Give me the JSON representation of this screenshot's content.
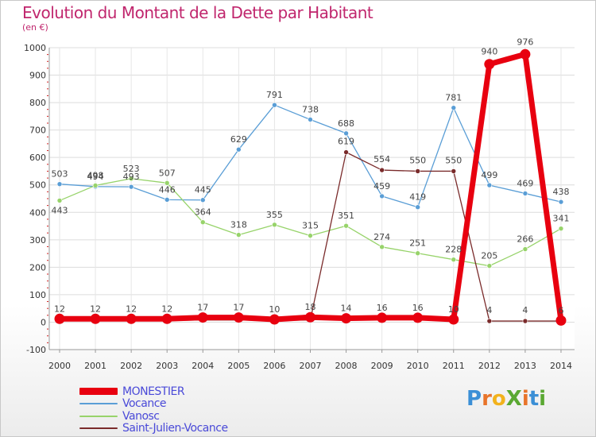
{
  "title": "Evolution du Montant de la Dette par Habitant",
  "unit_label": "(en €)",
  "logo": {
    "text": "ProXiti",
    "letters": [
      {
        "char": "P",
        "color": "#3b8fd6"
      },
      {
        "char": "r",
        "color": "#e8742a"
      },
      {
        "char": "o",
        "color": "#f2b21c"
      },
      {
        "char": "X",
        "color": "#5aa832"
      },
      {
        "char": "i",
        "color": "#e8742a"
      },
      {
        "char": "t",
        "color": "#3b8fd6"
      },
      {
        "char": "i",
        "color": "#5aa832"
      }
    ]
  },
  "chart_data": {
    "type": "line",
    "title": "Evolution du Montant de la Dette par Habitant",
    "ylabel": "(en €)",
    "xlabel": "",
    "ylim": [
      -100,
      1000
    ],
    "yticks": [
      -100,
      0,
      100,
      200,
      300,
      400,
      500,
      600,
      700,
      800,
      900,
      1000
    ],
    "grid": true,
    "legend_position": "bottom-left",
    "x": [
      "2000",
      "2001",
      "2002",
      "2003",
      "2004",
      "2005",
      "2006",
      "2007",
      "2008",
      "2009",
      "2010",
      "2011",
      "2012",
      "2013",
      "2014"
    ],
    "series": [
      {
        "name": "Vocance",
        "color": "#5a9ed6",
        "values": [
          503,
          494,
          493,
          446,
          445,
          629,
          791,
          738,
          688,
          459,
          419,
          781,
          499,
          469,
          438
        ]
      },
      {
        "name": "Vanosc",
        "color": "#97d36a",
        "values": [
          443,
          498,
          523,
          507,
          364,
          318,
          355,
          315,
          351,
          274,
          251,
          228,
          205,
          266,
          341
        ]
      },
      {
        "name": "Saint-Julien-Vocance",
        "color": "#7a2b2b",
        "values": [
          6,
          6,
          6,
          6,
          8,
          8,
          6,
          8,
          619,
          554,
          550,
          550,
          4,
          4,
          4
        ]
      },
      {
        "name": "MONESTIER",
        "color": "#e8000f",
        "values": [
          12,
          12,
          12,
          12,
          17,
          17,
          10,
          18,
          14,
          16,
          16,
          10,
          940,
          976,
          6
        ]
      }
    ],
    "data_labels": {
      "Vocance": [
        "503",
        "494",
        "493",
        "446",
        "445",
        "629",
        "791",
        "738",
        "688",
        "459",
        "419",
        "781",
        "499",
        "469",
        "438"
      ],
      "Vanosc": [
        "443",
        "498",
        "523",
        "507",
        "364",
        "318",
        "355",
        "315",
        "351",
        "274",
        "251",
        "228",
        "205",
        "266",
        "341"
      ],
      "Saint-Julien-Vocance": [
        "",
        "",
        "",
        "",
        "",
        "",
        "",
        "",
        "619",
        "554",
        "550",
        "550",
        "4",
        "4",
        ""
      ],
      "MONESTIER": [
        "12",
        "12",
        "12",
        "12",
        "17",
        "17",
        "10",
        "18",
        "14",
        "16",
        "16",
        "10",
        "940",
        "976",
        "6"
      ]
    }
  },
  "legend": [
    {
      "label": "MONESTIER",
      "color": "#e8000f"
    },
    {
      "label": "Vocance",
      "color": "#5a9ed6"
    },
    {
      "label": "Vanosc",
      "color": "#97d36a"
    },
    {
      "label": "Saint-Julien-Vocance",
      "color": "#7a2b2b"
    }
  ]
}
